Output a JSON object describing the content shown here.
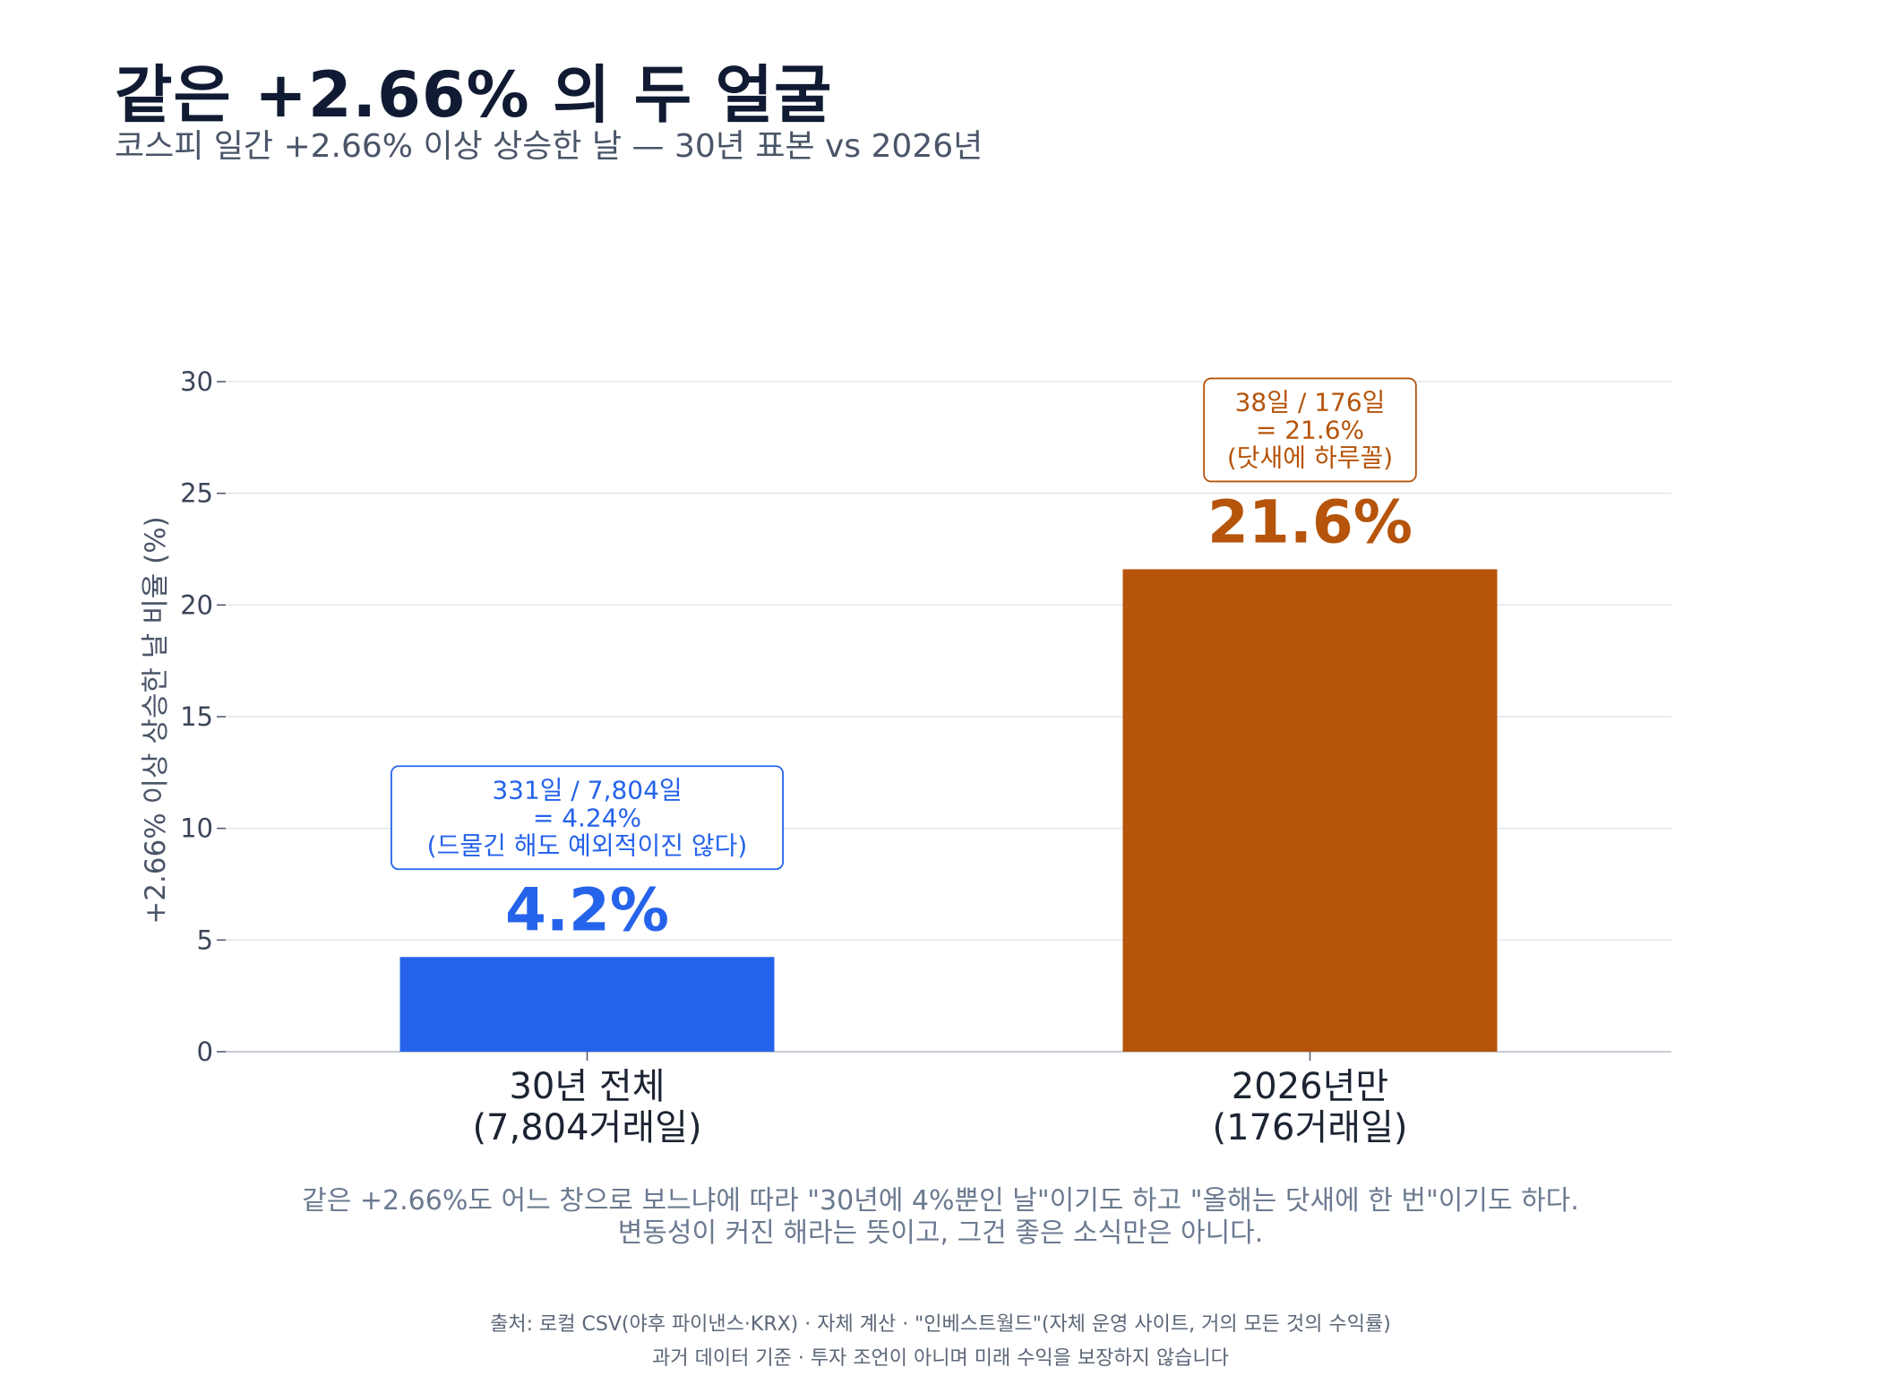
{
  "header": {
    "title": "같은 +2.66% 의 두 얼굴",
    "subtitle": "코스피 일간 +2.66% 이상 상승한 날 — 30년 표본 vs 2026년"
  },
  "chart_data": {
    "type": "bar",
    "ylabel": "+2.66% 이상 상승한 날 비율 (%)",
    "ylim": [
      0,
      30
    ],
    "yticks": [
      0,
      5,
      10,
      15,
      20,
      25,
      30
    ],
    "grid": true,
    "categories": [
      [
        "30년 전체",
        "(7,804거래일)"
      ],
      [
        "2026년만",
        "(176거래일)"
      ]
    ],
    "values": [
      4.24,
      21.6
    ],
    "value_labels": [
      "4.2%",
      "21.6%"
    ],
    "colors": [
      "#2563eb",
      "#b5540a"
    ],
    "annotations": [
      [
        "331일 / 7,804일",
        "= 4.24%",
        "(드물긴 해도 예외적이진 않다)"
      ],
      [
        "38일 / 176일",
        "= 21.6%",
        "(닷새에 하루꼴)"
      ]
    ]
  },
  "caption": {
    "line1": "같은 +2.66%도 어느 창으로 보느냐에 따라 \"30년에 4%뿐인 날\"이기도 하고 \"올해는 닷새에 한 번\"이기도 하다.",
    "line2": "변동성이 커진 해라는 뜻이고, 그건 좋은 소식만은 아니다."
  },
  "footer": {
    "source": "출처: 로컬 CSV(야후 파이낸스·KRX) · 자체 계산 · \"인베스트월드\"(자체 운영 사이트, 거의 모든 것의 수익률)",
    "disclaimer": "과거 데이터 기준 · 투자 조언이 아니며 미래 수익을 보장하지 않습니다"
  }
}
